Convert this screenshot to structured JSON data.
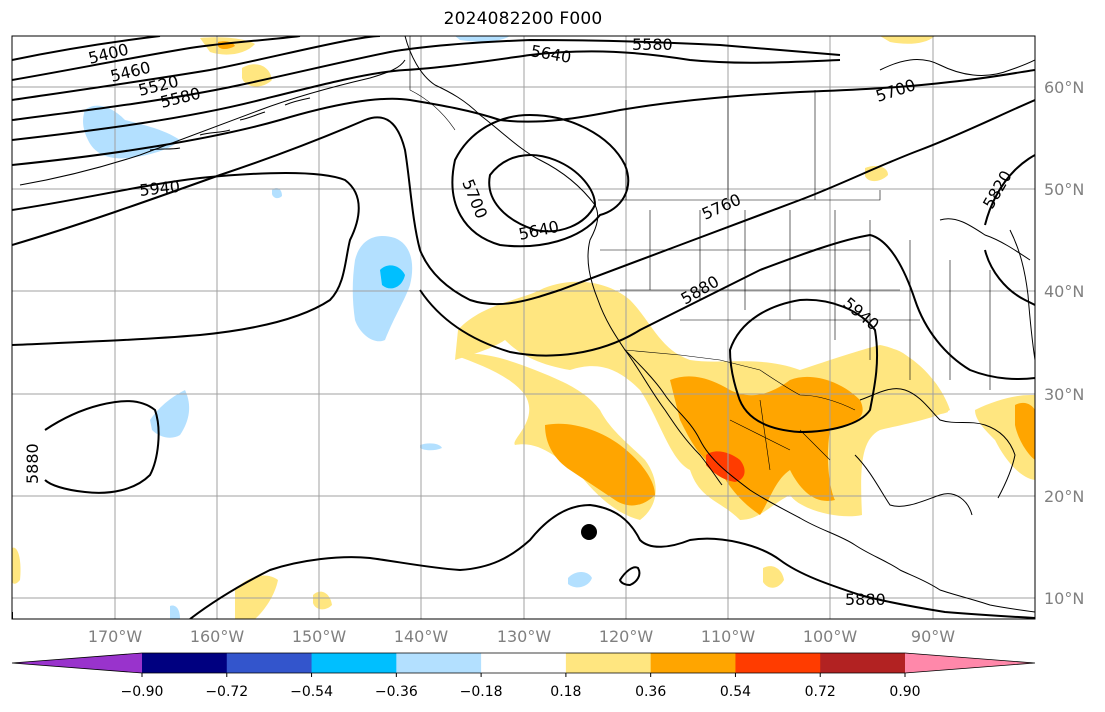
{
  "title": "2024082200 F000",
  "colors": {
    "land": "#000000",
    "contour": "#000000",
    "grid": "#a0a0a0",
    "tick_text": "#808080",
    "yellow": "#ffe680",
    "orange": "#ffa500",
    "red": "#ff3c00",
    "lightblue": "#b3e0ff"
  },
  "longitude_ticks": [
    "170°W",
    "160°W",
    "150°W",
    "140°W",
    "130°W",
    "120°W",
    "110°W",
    "100°W",
    "90°W"
  ],
  "latitude_ticks": [
    "60°N",
    "50°N",
    "40°N",
    "30°N",
    "20°N",
    "10°N"
  ],
  "contour_labels": [
    "5400",
    "5460",
    "5520",
    "5580",
    "5640",
    "5580",
    "5700",
    "5940",
    "5700",
    "5640",
    "5760",
    "5820",
    "5880",
    "5940",
    "5880",
    "5880"
  ],
  "colorbar": {
    "ticks": [
      "−0.90",
      "−0.72",
      "−0.54",
      "−0.36",
      "−0.18",
      "0.18",
      "0.36",
      "0.54",
      "0.72",
      "0.90"
    ],
    "colors": [
      "#9933cc",
      "#000080",
      "#3355cc",
      "#00bfff",
      "#b3e0ff",
      "#ffffff",
      "#ffe680",
      "#ffa500",
      "#ff3c00",
      "#b22222",
      "#ff88aa"
    ]
  }
}
